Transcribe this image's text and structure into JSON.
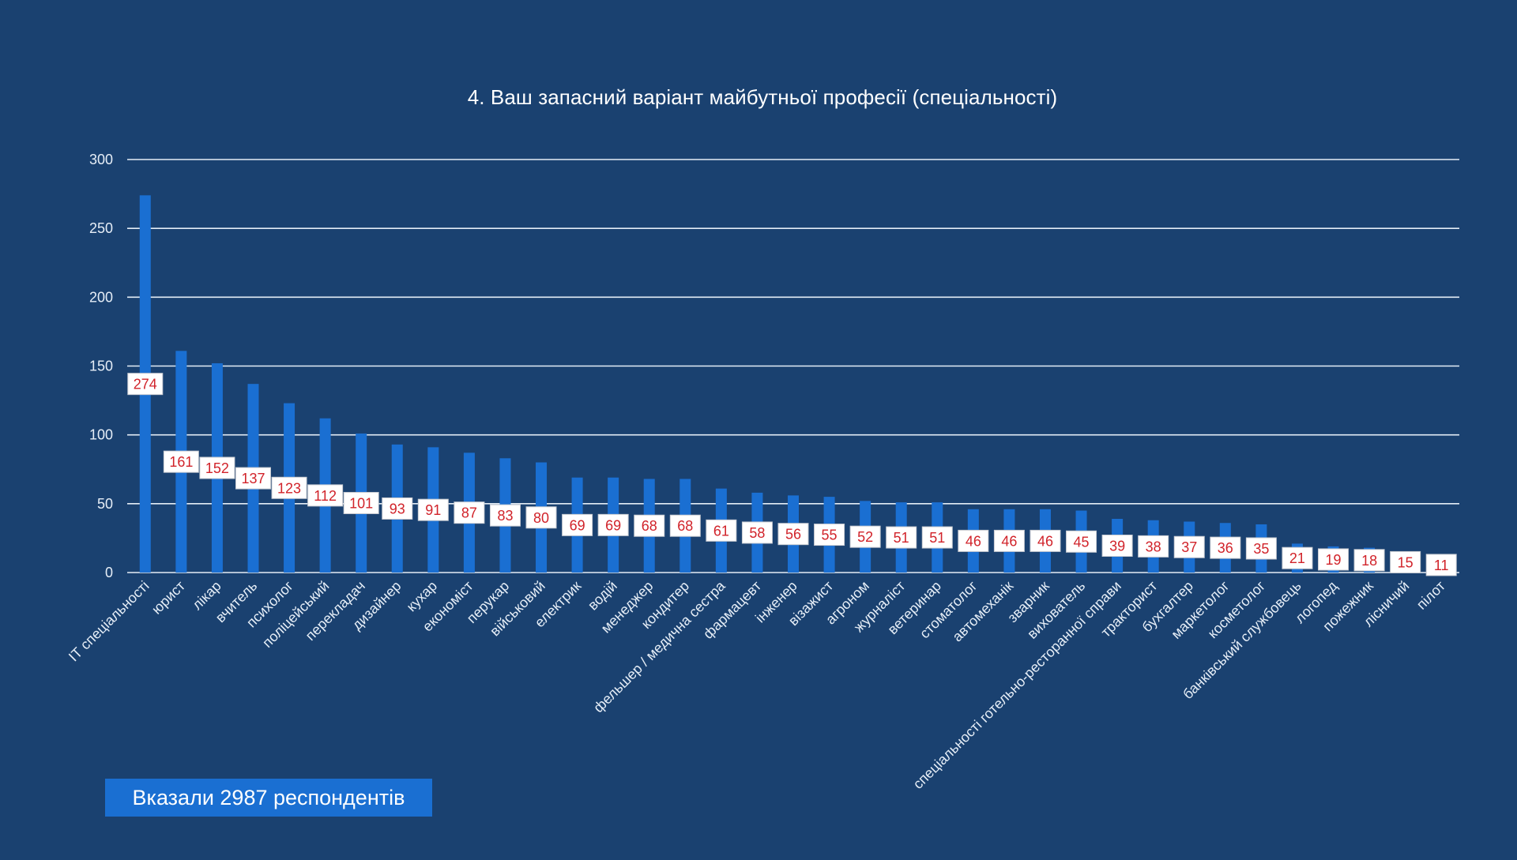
{
  "chart_data": {
    "type": "bar",
    "title": "4. Ваш запасний варіант майбутньої професії (спеціальності)",
    "xlabel": "",
    "ylabel": "",
    "ylim": [
      0,
      300
    ],
    "yticks": [
      0,
      50,
      100,
      150,
      200,
      250,
      300
    ],
    "grid": true,
    "legend": "none",
    "colors": {
      "background": "#1a4170",
      "bar": "#1a6fd2",
      "grid": "#e4edf6",
      "data_label_text": "#d1232a",
      "data_label_box": "#ffffff",
      "axis_text": "#e6eef7"
    },
    "categories": [
      "ІТ спеціальності",
      "юрист",
      "лікар",
      "вчитель",
      "психолог",
      "поліцейський",
      "перекладач",
      "дизайнер",
      "кухар",
      "економіст",
      "перукар",
      "військовий",
      "електрик",
      "водій",
      "менеджер",
      "кондитер",
      "фельшер / медична сестра",
      "фармацевт",
      "інженер",
      "візажист",
      "агроном",
      "журналіст",
      "ветеринар",
      "стоматолог",
      "автомеханік",
      "зварник",
      "вихователь",
      "спеціальності готельно-ресторанної справи",
      "тракторист",
      "бухгалтер",
      "маркетолог",
      "косметолог",
      "банківський службовець",
      "логопед",
      "пожежник",
      "лісничий",
      "пілот"
    ],
    "values": [
      274,
      161,
      152,
      137,
      123,
      112,
      101,
      93,
      91,
      87,
      83,
      80,
      69,
      69,
      68,
      68,
      61,
      58,
      56,
      55,
      52,
      51,
      51,
      46,
      46,
      46,
      45,
      39,
      38,
      37,
      36,
      35,
      21,
      19,
      18,
      15,
      11
    ]
  },
  "footer": {
    "respondents_label": "Вказали 2987 респондентів"
  }
}
